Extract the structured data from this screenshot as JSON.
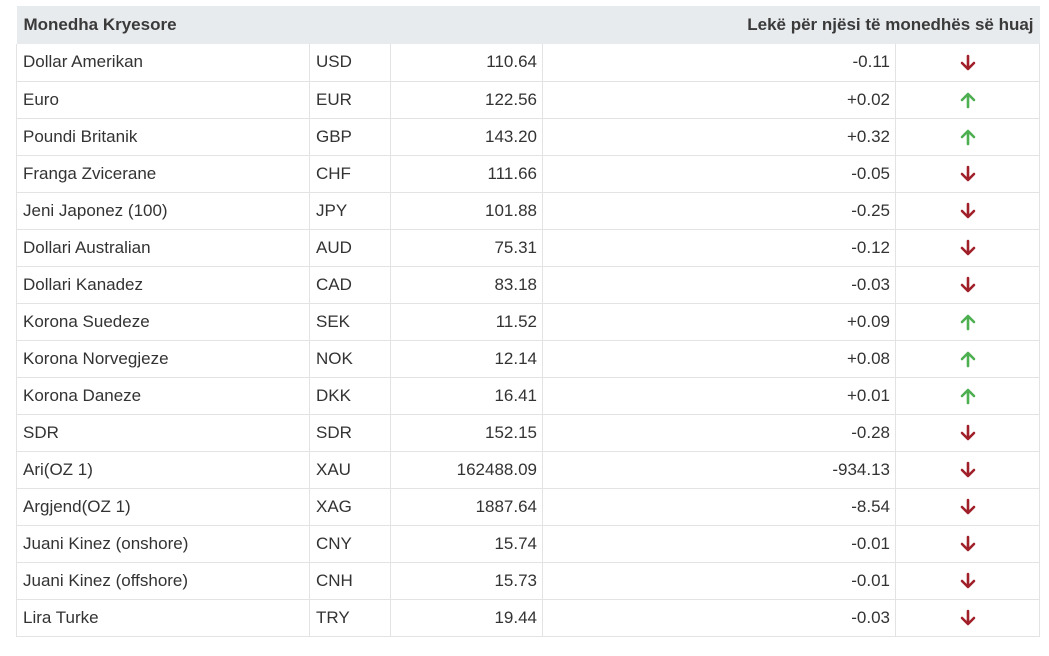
{
  "header": {
    "title": "Monedha Kryesore",
    "subtitle": "Lekë për njësi të monedhës së huaj"
  },
  "colors": {
    "up": "#4caf50",
    "down": "#a0202a",
    "header_bg": "#e8ebee"
  },
  "rows": [
    {
      "name": "Dollar Amerikan",
      "code": "USD",
      "rate": "110.64",
      "change": "-0.11",
      "dir": "down"
    },
    {
      "name": "Euro",
      "code": "EUR",
      "rate": "122.56",
      "change": "+0.02",
      "dir": "up"
    },
    {
      "name": "Poundi Britanik",
      "code": "GBP",
      "rate": "143.20",
      "change": "+0.32",
      "dir": "up"
    },
    {
      "name": "Franga Zvicerane",
      "code": "CHF",
      "rate": "111.66",
      "change": "-0.05",
      "dir": "down"
    },
    {
      "name": "Jeni Japonez (100)",
      "code": "JPY",
      "rate": "101.88",
      "change": "-0.25",
      "dir": "down"
    },
    {
      "name": "Dollari Australian",
      "code": "AUD",
      "rate": "75.31",
      "change": "-0.12",
      "dir": "down"
    },
    {
      "name": "Dollari Kanadez",
      "code": "CAD",
      "rate": "83.18",
      "change": "-0.03",
      "dir": "down"
    },
    {
      "name": "Korona Suedeze",
      "code": "SEK",
      "rate": "11.52",
      "change": "+0.09",
      "dir": "up"
    },
    {
      "name": "Korona Norvegjeze",
      "code": "NOK",
      "rate": "12.14",
      "change": "+0.08",
      "dir": "up"
    },
    {
      "name": "Korona Daneze",
      "code": "DKK",
      "rate": "16.41",
      "change": "+0.01",
      "dir": "up"
    },
    {
      "name": "SDR",
      "code": "SDR",
      "rate": "152.15",
      "change": "-0.28",
      "dir": "down"
    },
    {
      "name": "Ari(OZ 1)",
      "code": "XAU",
      "rate": "162488.09",
      "change": "-934.13",
      "dir": "down"
    },
    {
      "name": "Argjend(OZ 1)",
      "code": "XAG",
      "rate": "1887.64",
      "change": "-8.54",
      "dir": "down"
    },
    {
      "name": "Juani Kinez (onshore)",
      "code": "CNY",
      "rate": "15.74",
      "change": "-0.01",
      "dir": "down"
    },
    {
      "name": "Juani Kinez (offshore)",
      "code": "CNH",
      "rate": "15.73",
      "change": "-0.01",
      "dir": "down"
    },
    {
      "name": "Lira Turke",
      "code": "TRY",
      "rate": "19.44",
      "change": "-0.03",
      "dir": "down"
    }
  ]
}
